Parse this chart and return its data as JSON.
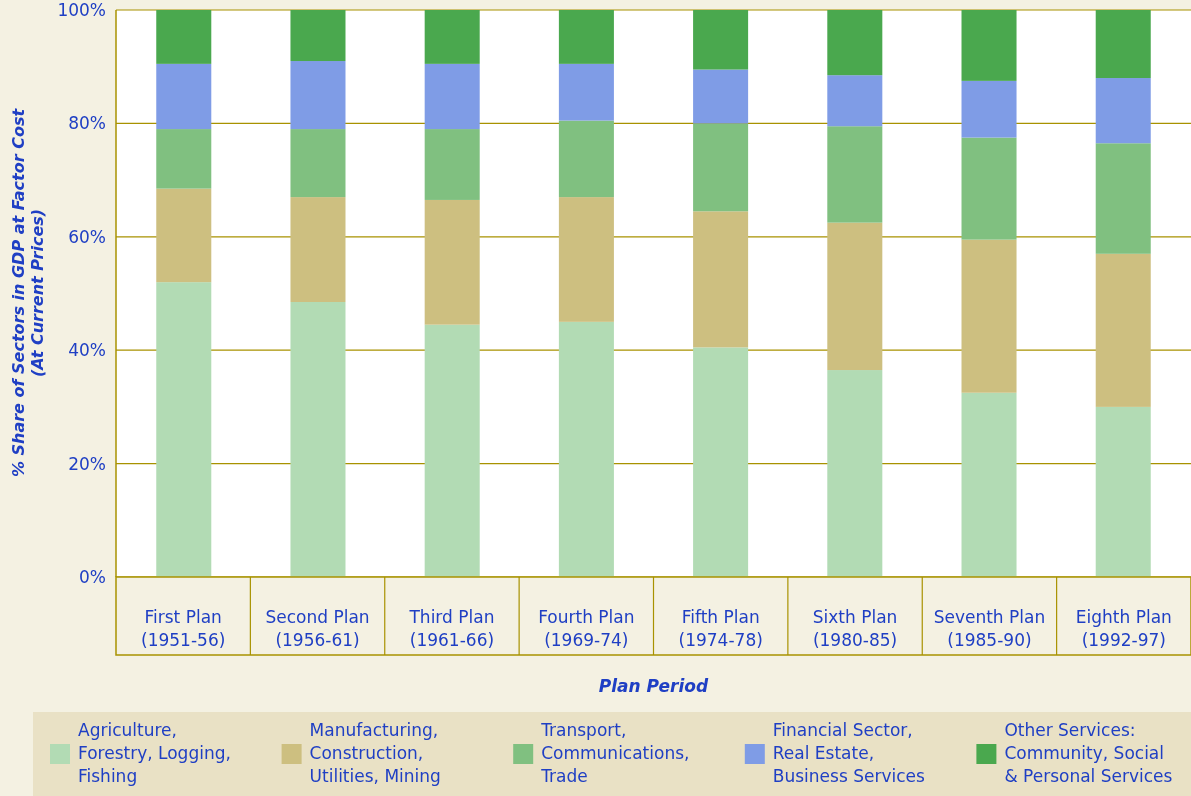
{
  "chart_data": {
    "type": "bar",
    "stacked": true,
    "xlabel": "Plan Period",
    "ylabel": "% Share of Sectors in GDP at Factor Cost\n(At Current Prices)",
    "categories": [
      "First Plan\n(1951-56)",
      "Second Plan\n(1956-61)",
      "Third Plan\n(1961-66)",
      "Fourth Plan\n(1969-74)",
      "Fifth Plan\n(1974-78)",
      "Sixth Plan\n(1980-85)",
      "Seventh Plan\n(1985-90)",
      "Eighth Plan\n(1992-97)"
    ],
    "series": [
      {
        "name": "Agriculture,\nForestry, Logging,\nFishing",
        "color": "#b2dbb4",
        "values": [
          52,
          48.5,
          44.5,
          45,
          40.5,
          36.5,
          32.5,
          30
        ]
      },
      {
        "name": "Manufacturing,\nConstruction,\nUtilities, Mining",
        "color": "#cdbf80",
        "values": [
          16.5,
          18.5,
          22,
          22,
          24,
          26,
          27,
          27
        ]
      },
      {
        "name": "Transport,\nCommunications,\nTrade",
        "color": "#80c080",
        "values": [
          10.5,
          12,
          12.5,
          13.5,
          15.5,
          17,
          18,
          19.5
        ]
      },
      {
        "name": "Financial Sector,\nReal Estate,\nBusiness Services",
        "color": "#7f9ce6",
        "values": [
          11.5,
          12,
          11.5,
          10,
          9.5,
          9,
          10,
          11.5
        ]
      },
      {
        "name": "Other Services:\nCommunity, Social\n& Personal Services",
        "color": "#4aa84e",
        "values": [
          9.5,
          9,
          9.5,
          9.5,
          10.5,
          11.5,
          12.5,
          12
        ]
      }
    ],
    "ylim": [
      0,
      100
    ],
    "yticks": [
      {
        "value": 0,
        "label": "0%"
      },
      {
        "value": 20,
        "label": "20%"
      },
      {
        "value": 40,
        "label": "40%"
      },
      {
        "value": 60,
        "label": "60%"
      },
      {
        "value": 80,
        "label": "80%"
      },
      {
        "value": 100,
        "label": "100%"
      }
    ],
    "grid": "y",
    "legend": "bottom"
  }
}
